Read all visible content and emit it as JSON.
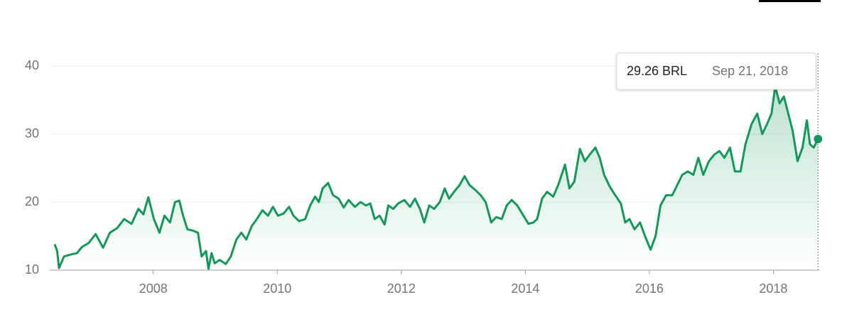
{
  "chart_data": {
    "type": "line",
    "color": "#14985a",
    "xlim": [
      2006.33,
      2018.74
    ],
    "xticks": [
      2008,
      2010,
      2012,
      2014,
      2016,
      2018
    ],
    "ylim": [
      10,
      40
    ],
    "yticks": [
      10,
      20,
      30,
      40
    ],
    "grid": true,
    "tooltip": {
      "value": "29.26 BRL",
      "date": "Sep 21, 2018"
    },
    "x": [
      2006.41,
      2006.45,
      2006.48,
      2006.56,
      2006.67,
      2006.77,
      2006.85,
      2006.96,
      2007.07,
      2007.19,
      2007.3,
      2007.42,
      2007.53,
      2007.65,
      2007.76,
      2007.84,
      2007.92,
      2008.01,
      2008.1,
      2008.18,
      2008.27,
      2008.35,
      2008.42,
      2008.48,
      2008.55,
      2008.64,
      2008.72,
      2008.78,
      2008.85,
      2008.89,
      2008.94,
      2008.99,
      2009.07,
      2009.17,
      2009.25,
      2009.34,
      2009.42,
      2009.5,
      2009.59,
      2009.67,
      2009.76,
      2009.85,
      2009.93,
      2010.01,
      2010.1,
      2010.19,
      2010.26,
      2010.35,
      2010.45,
      2010.53,
      2010.61,
      2010.67,
      2010.73,
      2010.82,
      2010.9,
      2010.99,
      2011.07,
      2011.15,
      2011.25,
      2011.34,
      2011.43,
      2011.5,
      2011.57,
      2011.65,
      2011.73,
      2011.79,
      2011.87,
      2011.95,
      2012.05,
      2012.14,
      2012.22,
      2012.3,
      2012.37,
      2012.45,
      2012.53,
      2012.62,
      2012.7,
      2012.77,
      2012.85,
      2012.94,
      2013.02,
      2013.1,
      2013.19,
      2013.28,
      2013.36,
      2013.45,
      2013.53,
      2013.62,
      2013.7,
      2013.78,
      2013.87,
      2013.95,
      2014.05,
      2014.13,
      2014.19,
      2014.27,
      2014.35,
      2014.45,
      2014.53,
      2014.64,
      2014.71,
      2014.79,
      2014.88,
      2014.96,
      2015.04,
      2015.13,
      2015.2,
      2015.27,
      2015.36,
      2015.45,
      2015.54,
      2015.61,
      2015.68,
      2015.76,
      2015.85,
      2015.93,
      2016.02,
      2016.1,
      2016.18,
      2016.27,
      2016.37,
      2016.45,
      2016.53,
      2016.62,
      2016.71,
      2016.79,
      2016.87,
      2016.96,
      2017.05,
      2017.13,
      2017.21,
      2017.3,
      2017.38,
      2017.47,
      2017.55,
      2017.65,
      2017.74,
      2017.82,
      2017.9,
      2017.97,
      2018.03,
      2018.1,
      2018.17,
      2018.24,
      2018.31,
      2018.39,
      2018.47,
      2018.54,
      2018.59,
      2018.65,
      2018.72
    ],
    "series": [
      {
        "values": [
          13.8,
          12.8,
          10.3,
          12.0,
          12.3,
          12.5,
          13.4,
          14.0,
          15.3,
          13.3,
          15.5,
          16.2,
          17.5,
          16.8,
          19.0,
          18.2,
          20.7,
          17.5,
          15.5,
          18.0,
          17.0,
          20.0,
          20.2,
          18.0,
          16.0,
          15.8,
          15.5,
          12.0,
          12.8,
          10.2,
          12.5,
          11.0,
          11.5,
          10.9,
          12.0,
          14.5,
          15.5,
          14.5,
          16.5,
          17.5,
          18.8,
          18.0,
          19.3,
          18.0,
          18.3,
          19.3,
          18.0,
          17.2,
          17.5,
          19.5,
          20.8,
          20.0,
          22.0,
          22.8,
          21.0,
          20.5,
          19.2,
          20.3,
          19.3,
          20.0,
          19.5,
          19.8,
          17.5,
          18.0,
          16.7,
          19.5,
          19.0,
          19.8,
          20.3,
          19.3,
          20.5,
          19.0,
          17.0,
          19.5,
          19.0,
          20.0,
          22.0,
          20.5,
          21.5,
          22.5,
          23.8,
          22.5,
          21.8,
          21.0,
          20.0,
          17.0,
          17.8,
          17.5,
          19.5,
          20.3,
          19.5,
          18.3,
          16.8,
          17.0,
          17.5,
          20.5,
          21.5,
          20.8,
          22.5,
          25.5,
          22.0,
          23.0,
          27.8,
          26.0,
          27.0,
          28.0,
          26.5,
          24.0,
          22.3,
          21.0,
          19.8,
          17.0,
          17.5,
          16.0,
          17.0,
          15.0,
          13.0,
          15.0,
          19.5,
          21.0,
          21.0,
          22.5,
          24.0,
          24.5,
          24.0,
          26.5,
          24.0,
          26.0,
          27.0,
          27.5,
          26.5,
          28.0,
          24.5,
          24.5,
          28.5,
          31.5,
          33.0,
          30.0,
          31.5,
          33.0,
          37.0,
          34.5,
          35.5,
          33.0,
          30.5,
          26.0,
          28.0,
          32.0,
          28.5,
          28.0,
          29.26
        ]
      }
    ]
  }
}
